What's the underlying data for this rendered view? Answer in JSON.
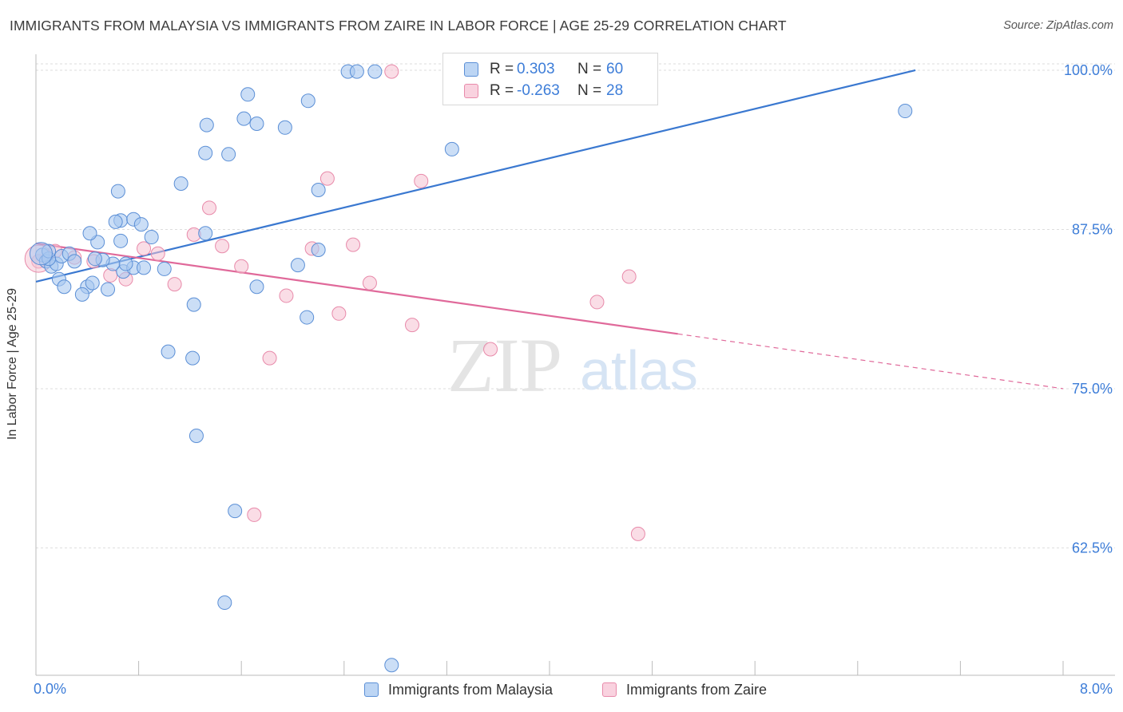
{
  "title": "IMMIGRANTS FROM MALAYSIA VS IMMIGRANTS FROM ZAIRE IN LABOR FORCE | AGE 25-29 CORRELATION CHART",
  "source": "Source: ZipAtlas.com",
  "watermark": {
    "zip": "ZIP",
    "atlas": "atlas"
  },
  "colors": {
    "malaysia_fill": "#a9c8f0",
    "malaysia_stroke": "#5b8fd6",
    "malaysia_line": "#3a78d0",
    "zaire_fill": "#f6c1d2",
    "zaire_stroke": "#e88aaa",
    "zaire_line": "#e0699a",
    "tick_label": "#3d7dd8",
    "grid": "#dddddd"
  },
  "legend": {
    "rows": [
      {
        "r_label": "R =",
        "r_value": "0.303",
        "n_label": "N =",
        "n_value": "60"
      },
      {
        "r_label": "R =",
        "r_value": "-0.263",
        "n_label": "N =",
        "n_value": "28"
      }
    ]
  },
  "bottom_legend": {
    "malaysia": "Immigrants from Malaysia",
    "zaire": "Immigrants from Zaire"
  },
  "chart_data": {
    "type": "scatter",
    "title": "IMMIGRANTS FROM MALAYSIA VS IMMIGRANTS FROM ZAIRE IN LABOR FORCE | AGE 25-29 CORRELATION CHART",
    "xlabel": "",
    "ylabel": "In Labor Force | Age 25-29",
    "xlim": [
      0,
      8
    ],
    "ylim": [
      52.5,
      100.5
    ],
    "x_tick_labels": [
      "0.0%",
      "8.0%"
    ],
    "y_ticks": [
      62.5,
      75.0,
      87.5,
      100.0
    ],
    "y_tick_labels": [
      "62.5%",
      "75.0%",
      "87.5%",
      "100.0%"
    ],
    "grid": true,
    "legend_position": "top-center and bottom",
    "series": [
      {
        "name": "Immigrants from Malaysia",
        "r": 0.303,
        "n": 60,
        "trend": {
          "x": [
            0.0,
            6.85
          ],
          "y": [
            83.4,
            100.0
          ]
        },
        "points": [
          [
            0.05,
            85.5
          ],
          [
            0.08,
            85.0
          ],
          [
            0.12,
            84.6
          ],
          [
            0.16,
            84.8
          ],
          [
            0.2,
            85.4
          ],
          [
            0.26,
            85.6
          ],
          [
            0.1,
            85.2
          ],
          [
            0.18,
            83.6
          ],
          [
            0.22,
            83.0
          ],
          [
            0.4,
            83.0
          ],
          [
            0.36,
            82.4
          ],
          [
            0.56,
            82.8
          ],
          [
            0.44,
            83.3
          ],
          [
            0.68,
            84.2
          ],
          [
            0.76,
            84.5
          ],
          [
            0.7,
            84.8
          ],
          [
            0.6,
            84.8
          ],
          [
            0.52,
            85.1
          ],
          [
            0.46,
            85.2
          ],
          [
            0.84,
            84.5
          ],
          [
            0.66,
            86.6
          ],
          [
            0.48,
            86.5
          ],
          [
            0.42,
            87.2
          ],
          [
            0.66,
            88.2
          ],
          [
            0.76,
            88.3
          ],
          [
            0.82,
            87.9
          ],
          [
            1.32,
            87.2
          ],
          [
            0.62,
            88.1
          ],
          [
            0.64,
            90.5
          ],
          [
            1.13,
            91.1
          ],
          [
            1.32,
            93.5
          ],
          [
            1.5,
            93.4
          ],
          [
            1.33,
            95.7
          ],
          [
            1.62,
            96.2
          ],
          [
            1.72,
            95.8
          ],
          [
            1.65,
            98.1
          ],
          [
            1.94,
            95.5
          ],
          [
            2.12,
            97.6
          ],
          [
            2.2,
            90.6
          ],
          [
            1.23,
            81.6
          ],
          [
            1.22,
            77.4
          ],
          [
            1.03,
            77.9
          ],
          [
            1.25,
            71.3
          ],
          [
            1.72,
            83.0
          ],
          [
            2.04,
            84.7
          ],
          [
            2.11,
            80.6
          ],
          [
            2.2,
            85.9
          ],
          [
            3.24,
            93.8
          ],
          [
            2.43,
            99.9
          ],
          [
            2.5,
            99.9
          ],
          [
            2.64,
            99.9
          ],
          [
            3.42,
            99.8
          ],
          [
            6.77,
            96.8
          ],
          [
            1.55,
            65.4
          ],
          [
            1.47,
            58.2
          ],
          [
            2.77,
            53.3
          ],
          [
            0.1,
            85.8
          ],
          [
            0.3,
            85.0
          ],
          [
            1.0,
            84.4
          ],
          [
            0.9,
            86.9
          ]
        ]
      },
      {
        "name": "Immigrants from Zaire",
        "r": -0.263,
        "n": 28,
        "trend": {
          "x": [
            0.0,
            5.0
          ],
          "y": [
            86.4,
            79.3
          ]
        },
        "trend_dashed": {
          "x": [
            5.0,
            8.0
          ],
          "y": [
            79.3,
            75.0
          ]
        },
        "points": [
          [
            0.02,
            85.0
          ],
          [
            0.15,
            85.8
          ],
          [
            0.3,
            85.3
          ],
          [
            0.45,
            85.0
          ],
          [
            0.58,
            83.9
          ],
          [
            0.7,
            83.6
          ],
          [
            0.84,
            86.0
          ],
          [
            0.95,
            85.6
          ],
          [
            1.08,
            83.2
          ],
          [
            1.23,
            87.1
          ],
          [
            1.35,
            89.2
          ],
          [
            1.45,
            86.2
          ],
          [
            1.6,
            84.6
          ],
          [
            1.82,
            77.4
          ],
          [
            1.95,
            82.3
          ],
          [
            2.15,
            86.0
          ],
          [
            2.27,
            91.5
          ],
          [
            2.36,
            80.9
          ],
          [
            2.47,
            86.3
          ],
          [
            2.6,
            83.3
          ],
          [
            2.93,
            80.0
          ],
          [
            3.0,
            91.3
          ],
          [
            3.54,
            78.1
          ],
          [
            4.37,
            81.8
          ],
          [
            4.62,
            83.8
          ],
          [
            4.69,
            63.6
          ],
          [
            1.7,
            65.1
          ],
          [
            2.77,
            99.9
          ]
        ]
      }
    ]
  }
}
